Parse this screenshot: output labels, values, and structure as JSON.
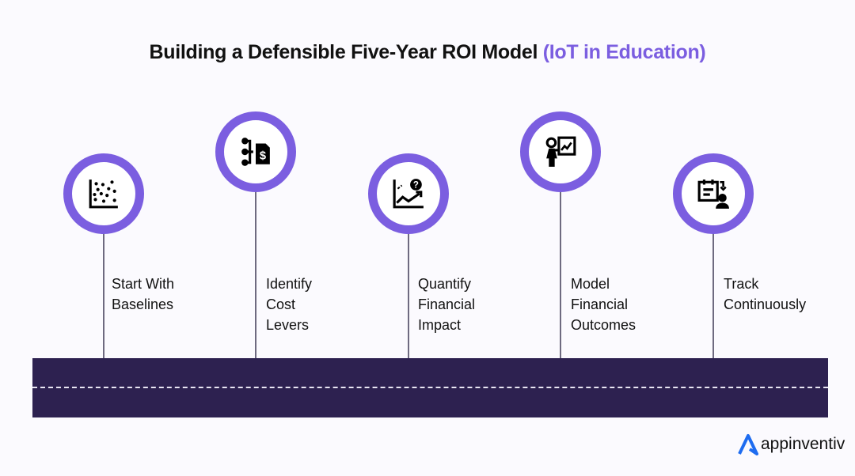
{
  "title": {
    "main": "Building a Defensible Five-Year ROI Model ",
    "accent": "(IoT in Education)"
  },
  "colors": {
    "accent": "#7b5ee0",
    "road": "#2d2150",
    "logo": "#1e6cf0"
  },
  "steps": [
    {
      "icon": "scatter-plot-icon",
      "line1": "Start With",
      "line2": "Baselines",
      "line3": ""
    },
    {
      "icon": "cost-branches-dollar-icon",
      "line1": "Identify",
      "line2": "Cost",
      "line3": "Levers"
    },
    {
      "icon": "chart-question-icon",
      "line1": "Quantify",
      "line2": "Financial",
      "line3": "Impact"
    },
    {
      "icon": "presenter-chart-icon",
      "line1": "Model",
      "line2": "Financial",
      "line3": "Outcomes"
    },
    {
      "icon": "calendar-user-icon",
      "line1": "Track",
      "line2": "Continuously",
      "line3": ""
    }
  ],
  "logo": {
    "text": "appinventiv"
  }
}
